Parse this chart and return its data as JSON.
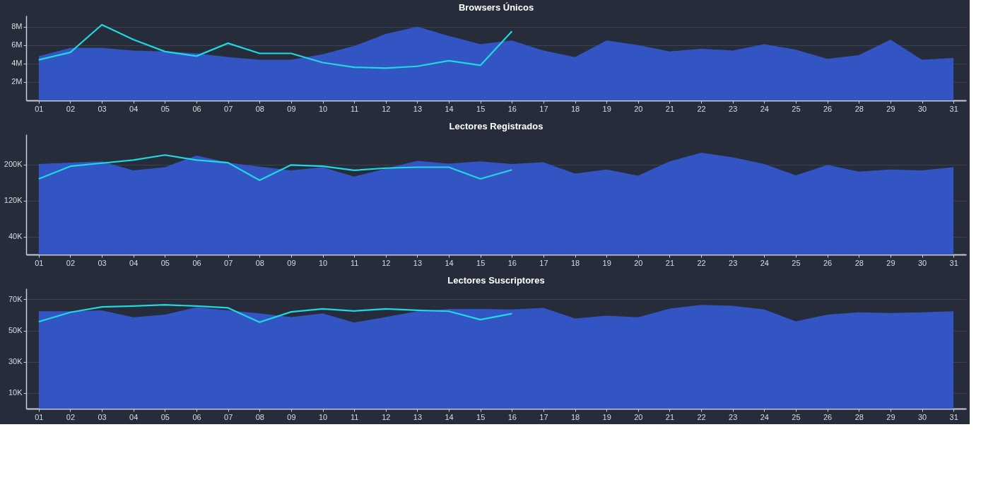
{
  "chart_data": [
    {
      "type": "area",
      "title": "Browsers Únicos",
      "categories": [
        "01",
        "02",
        "03",
        "04",
        "05",
        "06",
        "07",
        "08",
        "09",
        "10",
        "11",
        "12",
        "13",
        "14",
        "15",
        "16",
        "17",
        "18",
        "19",
        "20",
        "21",
        "22",
        "23",
        "24",
        "25",
        "26",
        "28",
        "29",
        "30",
        "31"
      ],
      "ylim": [
        0,
        9200000
      ],
      "yticks": [
        {
          "value": 2000000,
          "label": "2M"
        },
        {
          "value": 4000000,
          "label": "4M"
        },
        {
          "value": 6000000,
          "label": "6M"
        },
        {
          "value": 8000000,
          "label": "8M"
        }
      ],
      "grid": "y",
      "legend": false,
      "series": [
        {
          "type": "area",
          "color": "#3355c4",
          "values": [
            4800000,
            5700000,
            5700000,
            5400000,
            5300000,
            5100000,
            4700000,
            4400000,
            4400000,
            5000000,
            5900000,
            7200000,
            8000000,
            7000000,
            6100000,
            6500000,
            5400000,
            4700000,
            6500000,
            6000000,
            5300000,
            5600000,
            5400000,
            6100000,
            5500000,
            4500000,
            4900000,
            6600000,
            4400000,
            4600000
          ]
        },
        {
          "type": "line",
          "color": "#1fd8e0",
          "values": [
            4400000,
            5200000,
            8200000,
            6600000,
            5300000,
            4800000,
            6200000,
            5100000,
            5100000,
            4100000,
            3600000,
            3500000,
            3700000,
            4300000,
            3800000,
            7500000,
            null,
            null,
            null,
            null,
            null,
            null,
            null,
            null,
            null,
            null,
            null,
            null,
            null,
            null
          ]
        }
      ]
    },
    {
      "type": "area",
      "title": "Lectores Registrados",
      "categories": [
        "01",
        "02",
        "03",
        "04",
        "05",
        "06",
        "07",
        "08",
        "09",
        "10",
        "11",
        "12",
        "13",
        "14",
        "15",
        "16",
        "17",
        "18",
        "19",
        "20",
        "21",
        "22",
        "23",
        "24",
        "25",
        "26",
        "28",
        "29",
        "30",
        "31"
      ],
      "ylim": [
        0,
        267000
      ],
      "yticks": [
        {
          "value": 40000,
          "label": "40K"
        },
        {
          "value": 120000,
          "label": "120K"
        },
        {
          "value": 200000,
          "label": "200K"
        }
      ],
      "grid": "y",
      "legend": false,
      "series": [
        {
          "type": "area",
          "color": "#3355c4",
          "values": [
            201000,
            204000,
            207000,
            187000,
            194000,
            220000,
            204000,
            195000,
            187000,
            194000,
            173000,
            191000,
            208000,
            202000,
            207000,
            201000,
            205000,
            180000,
            189000,
            175000,
            207000,
            226000,
            216000,
            201000,
            176000,
            199000,
            184000,
            189000,
            187000,
            194000
          ]
        },
        {
          "type": "line",
          "color": "#1fd8e0",
          "values": [
            168000,
            196000,
            203000,
            210000,
            221000,
            210000,
            204000,
            165000,
            199000,
            196000,
            187000,
            192000,
            194000,
            194000,
            168000,
            188000,
            null,
            null,
            null,
            null,
            null,
            null,
            null,
            null,
            null,
            null,
            null,
            null,
            null,
            null
          ]
        }
      ]
    },
    {
      "type": "area",
      "title": "Lectores Suscriptores",
      "categories": [
        "01",
        "02",
        "03",
        "04",
        "05",
        "06",
        "07",
        "08",
        "09",
        "10",
        "11",
        "12",
        "13",
        "14",
        "15",
        "16",
        "17",
        "18",
        "19",
        "20",
        "21",
        "22",
        "23",
        "24",
        "25",
        "26",
        "28",
        "29",
        "30",
        "31"
      ],
      "ylim": [
        0,
        77000
      ],
      "yticks": [
        {
          "value": 10000,
          "label": "10K"
        },
        {
          "value": 30000,
          "label": "30K"
        },
        {
          "value": 50000,
          "label": "50K"
        },
        {
          "value": 70000,
          "label": "70K"
        }
      ],
      "grid": "y",
      "legend": false,
      "series": [
        {
          "type": "area",
          "color": "#3355c4",
          "values": [
            62400,
            62400,
            63000,
            58500,
            60200,
            65000,
            63000,
            61000,
            58700,
            61000,
            55200,
            58700,
            62400,
            63900,
            63900,
            63500,
            64600,
            57800,
            59600,
            58500,
            64100,
            66500,
            65900,
            63500,
            55900,
            60200,
            61700,
            61300,
            61700,
            62400
          ]
        },
        {
          "type": "line",
          "color": "#1fd8e0",
          "values": [
            55700,
            61700,
            65200,
            65700,
            66500,
            65700,
            64600,
            55400,
            62000,
            63900,
            62600,
            63900,
            63000,
            62400,
            57000,
            60900,
            null,
            null,
            null,
            null,
            null,
            null,
            null,
            null,
            null,
            null,
            null,
            null,
            null,
            null
          ]
        }
      ]
    }
  ]
}
